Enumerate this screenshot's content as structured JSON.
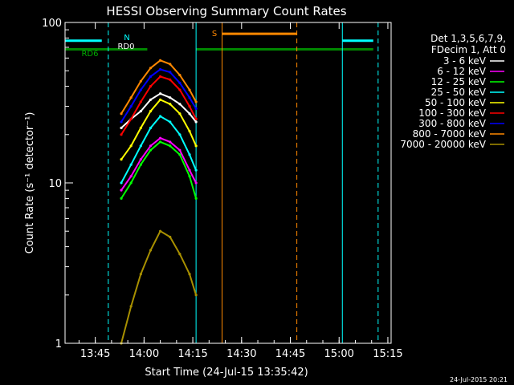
{
  "chart_data": {
    "type": "line",
    "title": "HESSI Observing Summary Count Rates",
    "xlabel": "Start Time (24-Jul-15 13:35:42)",
    "ylabel": "Count Rate (s⁻¹ detector⁻¹)",
    "ylog": true,
    "ylim": [
      1,
      100
    ],
    "xlim": [
      "13:35:42",
      "15:16:00"
    ],
    "xticks": [
      "13:45",
      "14:00",
      "14:15",
      "14:30",
      "14:45",
      "15:00",
      "15:15"
    ],
    "yticks": [
      "1",
      "10",
      "100"
    ],
    "legend_title": [
      "Det 1,3,5,6,7,9,",
      "FDecim 1, Att 0"
    ],
    "legend_position": "top-right",
    "timestamp": "24-Jul-2015 20:21",
    "series": [
      {
        "name": "3 - 6 keV",
        "color": "#ffffff",
        "x": [
          "13:53",
          "13:56",
          "13:59",
          "14:02",
          "14:05",
          "14:08",
          "14:11",
          "14:14",
          "14:16"
        ],
        "y": [
          22,
          25,
          28,
          33,
          36,
          34,
          31,
          27,
          24
        ]
      },
      {
        "name": "6 - 12 keV",
        "color": "#ff00ff",
        "x": [
          "13:53",
          "13:56",
          "13:59",
          "14:02",
          "14:05",
          "14:08",
          "14:11",
          "14:14",
          "14:16"
        ],
        "y": [
          9,
          11,
          14,
          17,
          19,
          18,
          16,
          12,
          10
        ]
      },
      {
        "name": "12 - 25 keV",
        "color": "#00ff00",
        "x": [
          "13:53",
          "13:56",
          "13:59",
          "14:02",
          "14:05",
          "14:08",
          "14:11",
          "14:14",
          "14:16"
        ],
        "y": [
          8,
          10,
          13,
          16,
          18,
          17,
          15,
          11,
          8
        ]
      },
      {
        "name": "25 - 50 keV",
        "color": "#00ffff",
        "x": [
          "13:53",
          "13:56",
          "13:59",
          "14:02",
          "14:05",
          "14:08",
          "14:11",
          "14:14",
          "14:16"
        ],
        "y": [
          10,
          13,
          17,
          22,
          26,
          24,
          20,
          15,
          12
        ]
      },
      {
        "name": "50 - 100 keV",
        "color": "#ffff00",
        "x": [
          "13:53",
          "13:56",
          "13:59",
          "14:02",
          "14:05",
          "14:08",
          "14:11",
          "14:14",
          "14:16"
        ],
        "y": [
          14,
          17,
          22,
          28,
          33,
          31,
          27,
          21,
          17
        ]
      },
      {
        "name": "100 - 300 keV",
        "color": "#ff0000",
        "x": [
          "13:53",
          "13:56",
          "13:59",
          "14:02",
          "14:05",
          "14:08",
          "14:11",
          "14:14",
          "14:16"
        ],
        "y": [
          20,
          25,
          32,
          40,
          46,
          44,
          38,
          30,
          25
        ]
      },
      {
        "name": "300 - 800 keV",
        "color": "#0000ff",
        "x": [
          "13:53",
          "13:56",
          "13:59",
          "14:02",
          "14:05",
          "14:08",
          "14:11",
          "14:14",
          "14:16"
        ],
        "y": [
          24,
          30,
          38,
          46,
          51,
          49,
          42,
          34,
          29
        ]
      },
      {
        "name": "800 - 7000 keV",
        "color": "#ff8800",
        "x": [
          "13:53",
          "13:56",
          "13:59",
          "14:02",
          "14:05",
          "14:08",
          "14:11",
          "14:14",
          "14:16"
        ],
        "y": [
          27,
          34,
          43,
          52,
          58,
          55,
          47,
          38,
          32
        ]
      },
      {
        "name": "7000 - 20000 keV",
        "color": "#a89000",
        "x": [
          "13:53",
          "13:56",
          "13:59",
          "14:02",
          "14:05",
          "14:08",
          "14:11",
          "14:14",
          "14:16"
        ],
        "y": [
          1,
          1.7,
          2.7,
          3.8,
          5,
          4.6,
          3.6,
          2.7,
          2
        ]
      }
    ],
    "annotations": [
      {
        "label": "N",
        "color": "#00ffff"
      },
      {
        "label": "RD0",
        "color": "#ffffff"
      },
      {
        "label": "RD6",
        "color": "#00aa00"
      },
      {
        "label": "S",
        "color": "#ff8800"
      }
    ],
    "bars": [
      {
        "color": "#00ffff",
        "y": 77,
        "x": [
          [
            "13:35:42",
            "13:47"
          ],
          [
            "15:01",
            "15:10:30"
          ]
        ]
      },
      {
        "color": "#008800",
        "y": 68,
        "x": [
          [
            "13:35:42",
            "14:01"
          ],
          [
            "14:16",
            "15:10:30"
          ]
        ]
      },
      {
        "color": "#ff8800",
        "y": 85,
        "x": [
          [
            "14:24",
            "14:47"
          ]
        ]
      }
    ],
    "vlines": [
      {
        "x": "13:35:42",
        "color": "#00ffff",
        "style": "solid"
      },
      {
        "x": "13:49",
        "color": "#00ffff",
        "style": "dashed"
      },
      {
        "x": "14:16",
        "color": "#00ffff",
        "style": "solid"
      },
      {
        "x": "14:24",
        "color": "#ff8800",
        "style": "solid"
      },
      {
        "x": "14:47",
        "color": "#ff8800",
        "style": "dashed"
      },
      {
        "x": "15:01",
        "color": "#00ffff",
        "style": "solid"
      },
      {
        "x": "15:12",
        "color": "#00ffff",
        "style": "dashed"
      }
    ]
  }
}
